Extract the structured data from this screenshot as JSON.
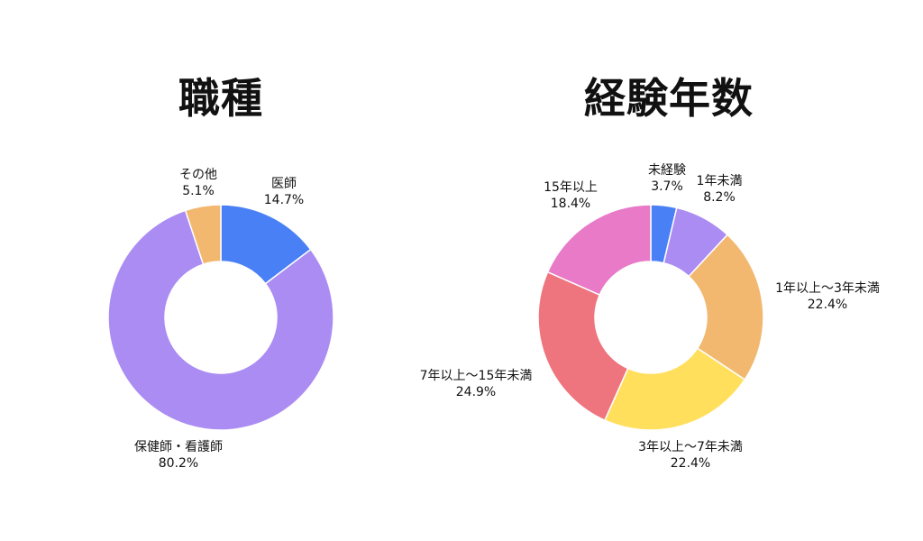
{
  "chart_data": [
    {
      "type": "pie",
      "variant": "donut",
      "title": "職種",
      "slices": [
        {
          "label": "医師",
          "value": 14.7,
          "display": "14.7%",
          "color": "#4a80f5"
        },
        {
          "label": "保健師・看護師",
          "value": 80.2,
          "display": "80.2%",
          "color": "#ab8cf3"
        },
        {
          "label": "その他",
          "value": 5.1,
          "display": "5.1%",
          "color": "#f2b870"
        }
      ]
    },
    {
      "type": "pie",
      "variant": "donut",
      "title": "経験年数",
      "slices": [
        {
          "label": "未経験",
          "value": 3.7,
          "display": "3.7%",
          "color": "#4a80f5"
        },
        {
          "label": "1年未満",
          "value": 8.2,
          "display": "8.2%",
          "color": "#ab8cf3"
        },
        {
          "label": "1年以上～3年未満",
          "value": 22.4,
          "display": "22.4%",
          "color": "#f2b870"
        },
        {
          "label": "3年以上～7年未満",
          "value": 22.4,
          "display": "22.4%",
          "color": "#ffdf5c"
        },
        {
          "label": "7年以上～15年未満",
          "value": 24.9,
          "display": "24.9%",
          "color": "#ee747e"
        },
        {
          "label": "15年以上",
          "value": 18.4,
          "display": "18.4%",
          "color": "#e87ac8"
        }
      ]
    }
  ]
}
